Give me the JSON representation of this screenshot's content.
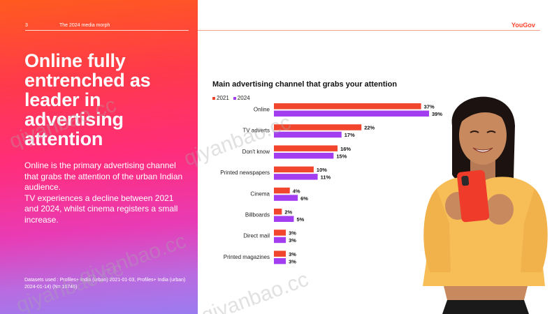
{
  "header": {
    "page_number": "3",
    "deck_title": "The 2024 media morph",
    "brand": "YouGov"
  },
  "left": {
    "headline": "Online fully\nentrenched as\nleader in\nadvertising\nattention",
    "body": "Online is the primary advertising channel that grabs the attention of the urban Indian audience.\nTV experiences a decline between 2021 and 2024, whilst cinema registers a small increase.",
    "dataset_note": "Datasets used :  Profiles+ India (urban) 2021-01-03,  Profiles+ India (urban) 2024-01-14)  (N= 16746)"
  },
  "watermarks": [
    "qiyanbao.cc",
    "qiyanbao.cc",
    "qiyanbao.cc",
    "qiyanbao.cc",
    "qiyanbao.cc"
  ],
  "colors": {
    "series_2021": "#f2452d",
    "series_2024": "#a33df0",
    "brand": "#ff412c"
  },
  "chart_data": {
    "type": "bar",
    "orientation": "horizontal",
    "title": "Main advertising channel that grabs your attention",
    "categories": [
      "Online",
      "TV adverts",
      "Don't know",
      "Printed newspapers",
      "Cinema",
      "Billboards",
      "Direct mail",
      "Printed magazines"
    ],
    "series": [
      {
        "name": "2021",
        "values": [
          37,
          22,
          16,
          10,
          4,
          2,
          3,
          3
        ],
        "labels": [
          "37%",
          "22%",
          "16%",
          "10%",
          "4%",
          "2%",
          "3%",
          "3%"
        ]
      },
      {
        "name": "2024",
        "values": [
          39,
          17,
          15,
          11,
          6,
          5,
          3,
          3
        ],
        "labels": [
          "39%",
          "17%",
          "15%",
          "11%",
          "6%",
          "5%",
          "3%",
          "3%"
        ]
      }
    ],
    "legend_position": "top-left",
    "value_unit": "%",
    "xlim": [
      0,
      39
    ],
    "grid": false
  }
}
